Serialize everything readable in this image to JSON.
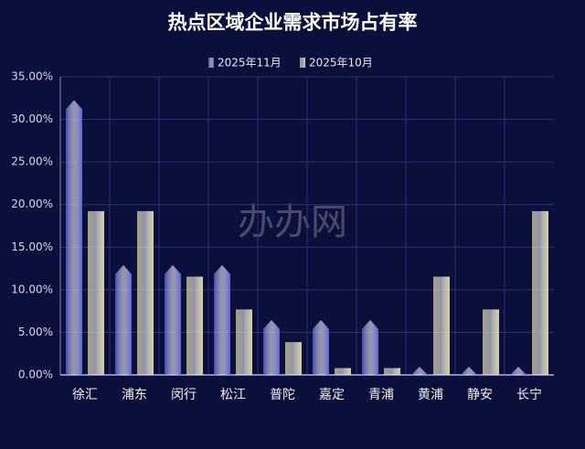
{
  "chart_data": {
    "type": "bar",
    "title": "热点区域企业需求市场占有率",
    "watermark": "办办网",
    "categories": [
      "徐汇",
      "浦东",
      "闵行",
      "松江",
      "普陀",
      "嘉定",
      "青浦",
      "黄浦",
      "静安",
      "长宁"
    ],
    "series": [
      {
        "name": "2025年11月",
        "color": "#5b5fd6",
        "values": [
          32.26,
          12.9,
          12.9,
          12.9,
          6.45,
          6.45,
          6.45,
          0.97,
          0.97,
          0.97
        ]
      },
      {
        "name": "2025年10月",
        "color": "#d8cf98",
        "values": [
          19.23,
          19.23,
          11.54,
          7.69,
          3.85,
          0.8,
          0.8,
          11.54,
          7.69,
          19.23
        ]
      }
    ],
    "ylim": [
      0,
      35
    ],
    "yticks": [
      {
        "value": 0,
        "label": "0.00%"
      },
      {
        "value": 5,
        "label": "5.00%"
      },
      {
        "value": 10,
        "label": "10.00%"
      },
      {
        "value": 15,
        "label": "15.00%"
      },
      {
        "value": 20,
        "label": "20.00%"
      },
      {
        "value": 25,
        "label": "25.00%"
      },
      {
        "value": 30,
        "label": "30.00%"
      },
      {
        "value": 35,
        "label": "35.00%"
      }
    ],
    "grid": true
  }
}
